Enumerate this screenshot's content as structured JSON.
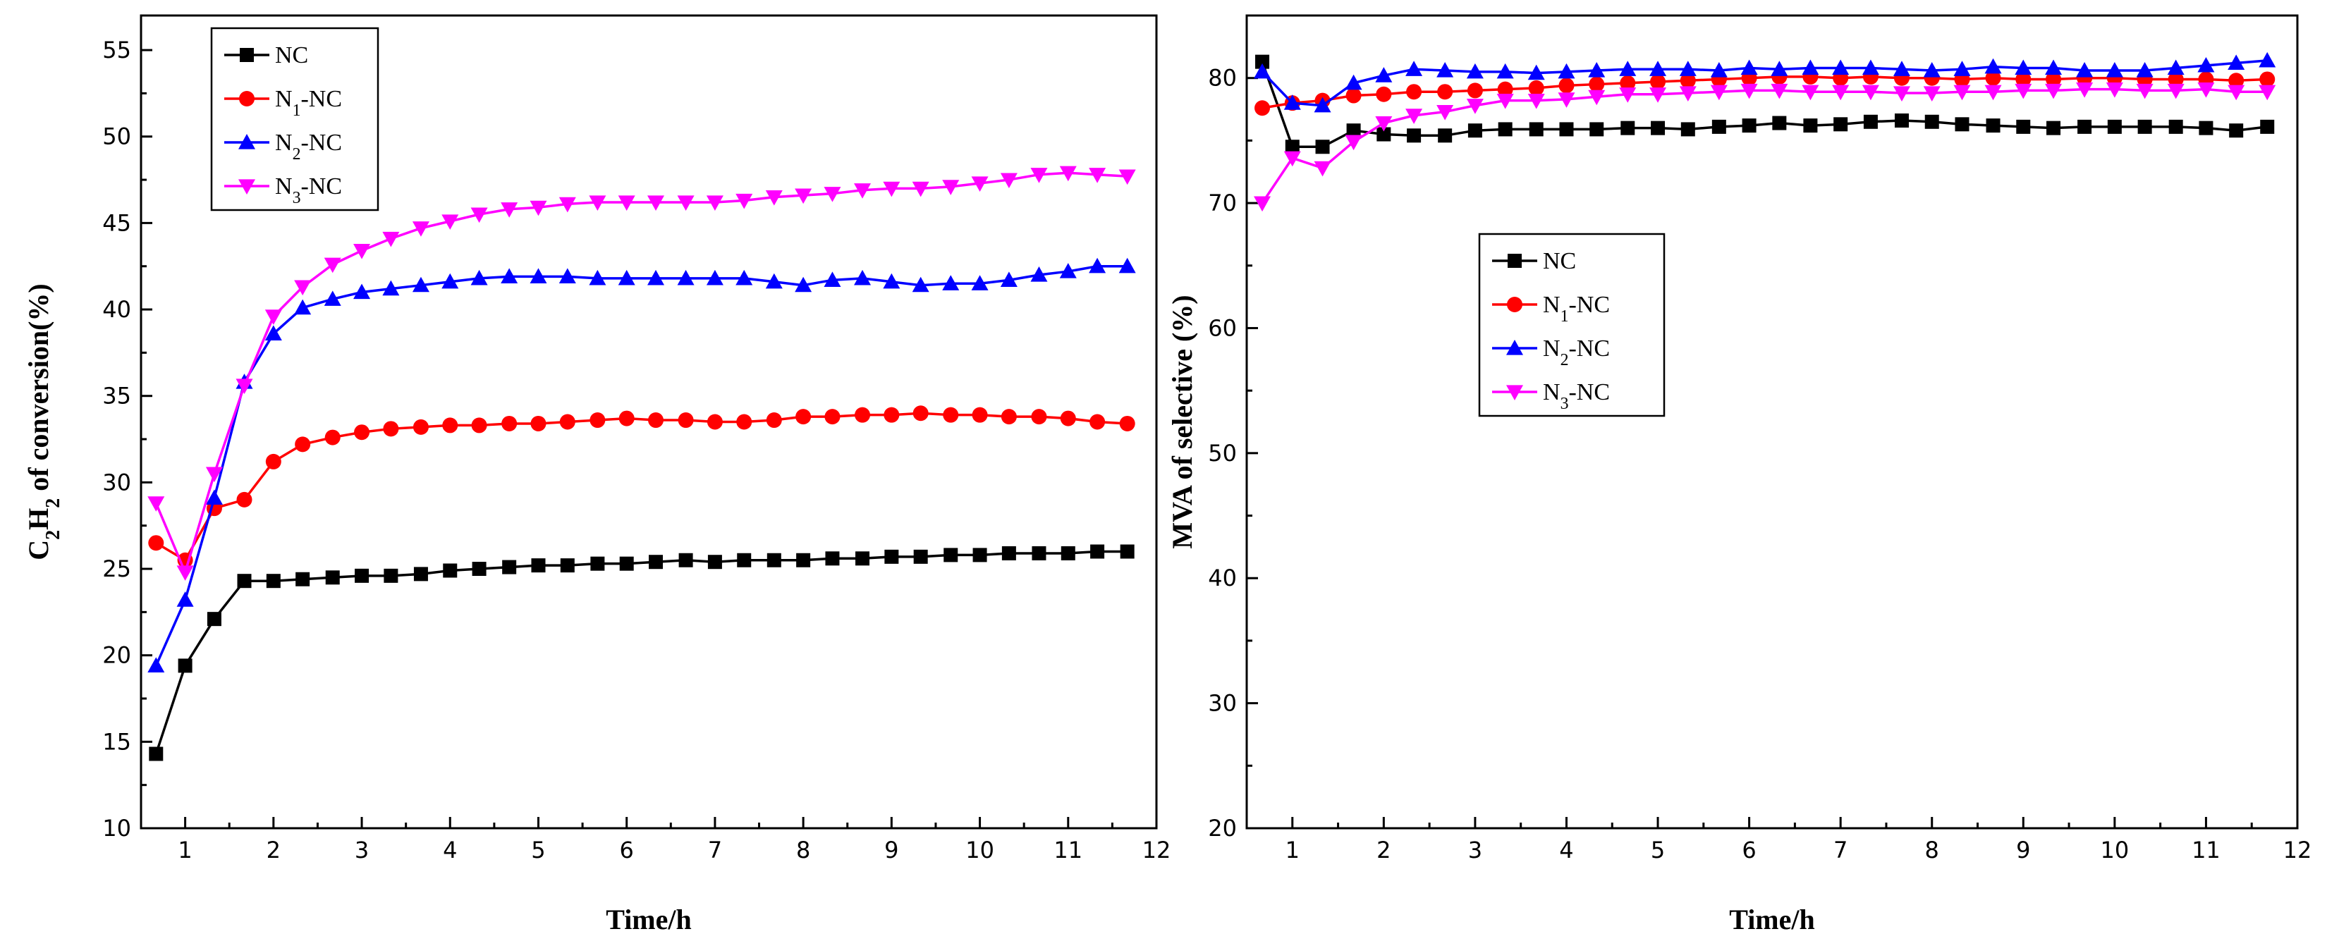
{
  "chart_data": [
    {
      "type": "line",
      "xlabel": "Time/h",
      "ylabel_parts": [
        {
          "t": "C",
          "sub": false
        },
        {
          "t": "2",
          "sub": true
        },
        {
          "t": "H",
          "sub": false
        },
        {
          "t": "2",
          "sub": true
        },
        {
          "t": " of conversion(%)",
          "sub": false
        }
      ],
      "xlim": [
        0.5,
        12
      ],
      "ylim": [
        10,
        57
      ],
      "xticks": [
        1,
        2,
        3,
        4,
        5,
        6,
        7,
        8,
        9,
        10,
        11,
        12
      ],
      "yticks": [
        10,
        15,
        20,
        25,
        30,
        35,
        40,
        45,
        50,
        55
      ],
      "legend_position": "top-left",
      "x": [
        0.67,
        1.0,
        1.33,
        1.67,
        2.0,
        2.33,
        2.67,
        3.0,
        3.33,
        3.67,
        4.0,
        4.33,
        4.67,
        5.0,
        5.33,
        5.67,
        6.0,
        6.33,
        6.67,
        7.0,
        7.33,
        7.67,
        8.0,
        8.33,
        8.67,
        9.0,
        9.33,
        9.67,
        10.0,
        10.33,
        10.67,
        11.0,
        11.33,
        11.67
      ],
      "series": [
        {
          "name": "NC",
          "label_parts": [
            {
              "t": "NC",
              "sub": false
            }
          ],
          "color": "#000000",
          "marker": "square",
          "values": [
            14.3,
            19.4,
            22.1,
            24.3,
            24.3,
            24.4,
            24.5,
            24.6,
            24.6,
            24.7,
            24.9,
            25.0,
            25.1,
            25.2,
            25.2,
            25.3,
            25.3,
            25.4,
            25.5,
            25.4,
            25.5,
            25.5,
            25.5,
            25.6,
            25.6,
            25.7,
            25.7,
            25.8,
            25.8,
            25.9,
            25.9,
            25.9,
            26.0,
            26.0
          ]
        },
        {
          "name": "N1-NC",
          "label_parts": [
            {
              "t": "N",
              "sub": false
            },
            {
              "t": "1",
              "sub": true
            },
            {
              "t": "-NC",
              "sub": false
            }
          ],
          "color": "#ff0000",
          "marker": "circle",
          "values": [
            26.5,
            25.5,
            28.5,
            29.0,
            31.2,
            32.2,
            32.6,
            32.9,
            33.1,
            33.2,
            33.3,
            33.3,
            33.4,
            33.4,
            33.5,
            33.6,
            33.7,
            33.6,
            33.6,
            33.5,
            33.5,
            33.6,
            33.8,
            33.8,
            33.9,
            33.9,
            34.0,
            33.9,
            33.9,
            33.8,
            33.8,
            33.7,
            33.5,
            33.4
          ]
        },
        {
          "name": "N2-NC",
          "label_parts": [
            {
              "t": "N",
              "sub": false
            },
            {
              "t": "2",
              "sub": true
            },
            {
              "t": "-NC",
              "sub": false
            }
          ],
          "color": "#0000ff",
          "marker": "triangle-up",
          "values": [
            19.4,
            23.2,
            29.1,
            35.8,
            38.6,
            40.1,
            40.6,
            41.0,
            41.2,
            41.4,
            41.6,
            41.8,
            41.9,
            41.9,
            41.9,
            41.8,
            41.8,
            41.8,
            41.8,
            41.8,
            41.8,
            41.6,
            41.4,
            41.7,
            41.8,
            41.6,
            41.4,
            41.5,
            41.5,
            41.7,
            42.0,
            42.2,
            42.5,
            42.5
          ]
        },
        {
          "name": "N3-NC",
          "label_parts": [
            {
              "t": "N",
              "sub": false
            },
            {
              "t": "3",
              "sub": true
            },
            {
              "t": "-NC",
              "sub": false
            }
          ],
          "color": "#ff00ff",
          "marker": "triangle-down",
          "values": [
            28.8,
            24.8,
            30.5,
            35.6,
            39.6,
            41.3,
            42.6,
            43.4,
            44.1,
            44.7,
            45.1,
            45.5,
            45.8,
            45.9,
            46.1,
            46.2,
            46.2,
            46.2,
            46.2,
            46.2,
            46.3,
            46.5,
            46.6,
            46.7,
            46.9,
            47.0,
            47.0,
            47.1,
            47.3,
            47.5,
            47.8,
            47.9,
            47.8,
            47.7
          ]
        }
      ]
    },
    {
      "type": "line",
      "xlabel": "Time/h",
      "ylabel_parts": [
        {
          "t": "MVA of selective (%)",
          "sub": false
        }
      ],
      "xlim": [
        0.5,
        12
      ],
      "ylim": [
        20,
        85
      ],
      "xticks": [
        1,
        2,
        3,
        4,
        5,
        6,
        7,
        8,
        9,
        10,
        11,
        12
      ],
      "yticks": [
        20,
        30,
        40,
        50,
        60,
        70,
        80
      ],
      "legend_position": "center-left",
      "x": [
        0.67,
        1.0,
        1.33,
        1.67,
        2.0,
        2.33,
        2.67,
        3.0,
        3.33,
        3.67,
        4.0,
        4.33,
        4.67,
        5.0,
        5.33,
        5.67,
        6.0,
        6.33,
        6.67,
        7.0,
        7.33,
        7.67,
        8.0,
        8.33,
        8.67,
        9.0,
        9.33,
        9.67,
        10.0,
        10.33,
        10.67,
        11.0,
        11.33,
        11.67
      ],
      "series": [
        {
          "name": "NC",
          "label_parts": [
            {
              "t": "NC",
              "sub": false
            }
          ],
          "color": "#000000",
          "marker": "square",
          "values": [
            81.3,
            74.5,
            74.5,
            75.8,
            75.5,
            75.4,
            75.4,
            75.8,
            75.9,
            75.9,
            75.9,
            75.9,
            76.0,
            76.0,
            75.9,
            76.1,
            76.2,
            76.4,
            76.2,
            76.3,
            76.5,
            76.6,
            76.5,
            76.3,
            76.2,
            76.1,
            76.0,
            76.1,
            76.1,
            76.1,
            76.1,
            76.0,
            75.8,
            76.1
          ]
        },
        {
          "name": "N1-NC",
          "label_parts": [
            {
              "t": "N",
              "sub": false
            },
            {
              "t": "1",
              "sub": true
            },
            {
              "t": "-NC",
              "sub": false
            }
          ],
          "color": "#ff0000",
          "marker": "circle",
          "values": [
            77.6,
            78.0,
            78.2,
            78.6,
            78.7,
            78.9,
            78.9,
            79.0,
            79.1,
            79.2,
            79.4,
            79.5,
            79.6,
            79.7,
            79.8,
            79.9,
            80.0,
            80.1,
            80.1,
            80.0,
            80.1,
            80.0,
            80.0,
            79.9,
            80.0,
            79.9,
            79.9,
            80.0,
            80.0,
            79.9,
            79.9,
            79.9,
            79.8,
            79.9
          ]
        },
        {
          "name": "N2-NC",
          "label_parts": [
            {
              "t": "N",
              "sub": false
            },
            {
              "t": "2",
              "sub": true
            },
            {
              "t": "-NC",
              "sub": false
            }
          ],
          "color": "#0000ff",
          "marker": "triangle-up",
          "values": [
            80.5,
            78.0,
            77.8,
            79.6,
            80.2,
            80.7,
            80.6,
            80.5,
            80.5,
            80.4,
            80.5,
            80.6,
            80.7,
            80.7,
            80.7,
            80.6,
            80.8,
            80.7,
            80.8,
            80.8,
            80.8,
            80.7,
            80.6,
            80.7,
            80.9,
            80.8,
            80.8,
            80.6,
            80.6,
            80.6,
            80.8,
            81.0,
            81.2,
            81.4
          ]
        },
        {
          "name": "N3-NC",
          "label_parts": [
            {
              "t": "N",
              "sub": false
            },
            {
              "t": "3",
              "sub": true
            },
            {
              "t": "-NC",
              "sub": false
            }
          ],
          "color": "#ff00ff",
          "marker": "triangle-down",
          "values": [
            70.0,
            73.6,
            72.8,
            74.9,
            76.4,
            77.0,
            77.3,
            77.8,
            78.2,
            78.2,
            78.3,
            78.5,
            78.7,
            78.7,
            78.8,
            78.9,
            79.0,
            79.0,
            78.9,
            78.9,
            78.9,
            78.8,
            78.8,
            78.9,
            78.9,
            79.0,
            79.0,
            79.1,
            79.1,
            79.0,
            79.0,
            79.1,
            78.9,
            78.9
          ]
        }
      ]
    }
  ]
}
